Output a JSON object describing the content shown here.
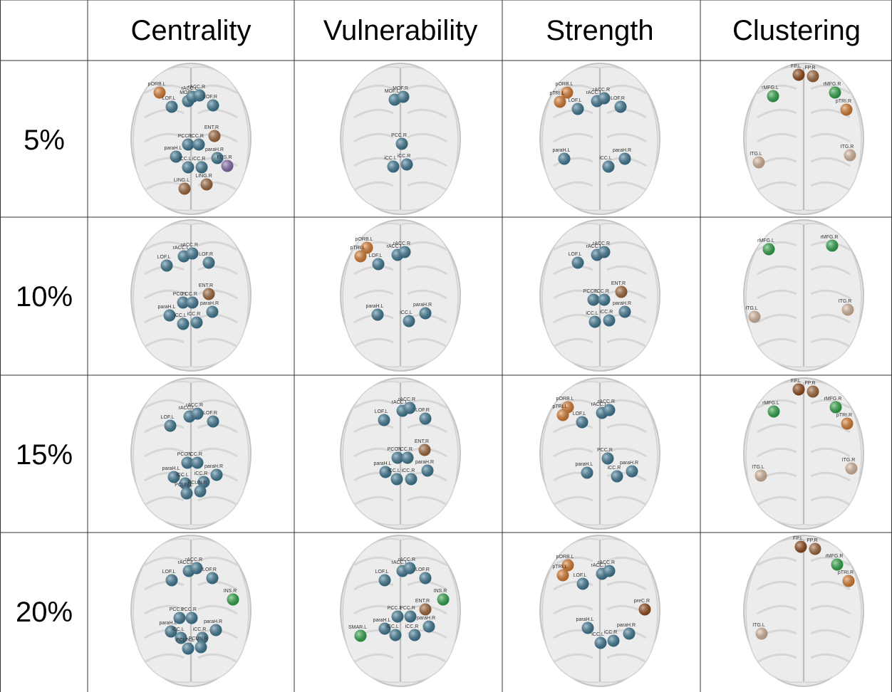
{
  "table": {
    "columns": [
      "Centrality",
      "Vulnerability",
      "Strength",
      "Clustering"
    ],
    "rows": [
      {
        "label": "5%",
        "cells": [
          [
            {
              "label": "pORB.L",
              "color": "#e8822e"
            },
            {
              "label": "LOF.L",
              "color": "#3f7f9c"
            },
            {
              "label": "MOF",
              "color": "#3f7f9c"
            },
            {
              "label": "rACC.L",
              "color": "#3f7f9c"
            },
            {
              "label": "rACC.R",
              "color": "#3f7f9c"
            },
            {
              "label": "LOF.R",
              "color": "#3f7f9c"
            },
            {
              "label": "PCC.L",
              "color": "#3f7f9c"
            },
            {
              "label": "PCC.R",
              "color": "#3f7f9c"
            },
            {
              "label": "ENT.R",
              "color": "#a86a3a"
            },
            {
              "label": "paraH.L",
              "color": "#3f7f9c"
            },
            {
              "label": "iCC.L",
              "color": "#3f7f9c"
            },
            {
              "label": "iCC.R",
              "color": "#3f7f9c"
            },
            {
              "label": "paraH.R",
              "color": "#3f7f9c"
            },
            {
              "label": "FUS.R",
              "color": "#8e6fb5"
            },
            {
              "label": "LING.L",
              "color": "#a86a3a"
            },
            {
              "label": "LING.R",
              "color": "#a86a3a"
            }
          ],
          [
            {
              "label": "MOF.L",
              "color": "#3f7f9c"
            },
            {
              "label": "MOF.R",
              "color": "#3f7f9c"
            },
            {
              "label": "PCC.R",
              "color": "#3f7f9c"
            },
            {
              "label": "iCC.L",
              "color": "#3f7f9c"
            },
            {
              "label": "iCC.R",
              "color": "#3f7f9c"
            }
          ],
          [
            {
              "label": "pORB.L",
              "color": "#e8822e"
            },
            {
              "label": "pTRI.L",
              "color": "#e8822e"
            },
            {
              "label": "LOF.L",
              "color": "#3f7f9c"
            },
            {
              "label": "rACC.L",
              "color": "#3f7f9c"
            },
            {
              "label": "rACC.R",
              "color": "#3f7f9c"
            },
            {
              "label": "LOF.R",
              "color": "#3f7f9c"
            },
            {
              "label": "paraH.L",
              "color": "#3f7f9c"
            },
            {
              "label": "iCC.L",
              "color": "#3f7f9c"
            },
            {
              "label": "paraH.R",
              "color": "#3f7f9c"
            }
          ],
          [
            {
              "label": "FP.L",
              "color": "#9a4a14"
            },
            {
              "label": "FP.R",
              "color": "#a86a3a"
            },
            {
              "label": "rMFG.L",
              "color": "#2eb04a"
            },
            {
              "label": "rMFG.R",
              "color": "#2eb04a"
            },
            {
              "label": "pTRI.R",
              "color": "#e8822e"
            },
            {
              "label": "ITG.L",
              "color": "#e6b894"
            },
            {
              "label": "ITG.R",
              "color": "#e6b894"
            }
          ]
        ]
      },
      {
        "label": "10%",
        "cells": [
          [
            {
              "label": "LOF.L",
              "color": "#3f7f9c"
            },
            {
              "label": "rACC.L",
              "color": "#3f7f9c"
            },
            {
              "label": "rACC.R",
              "color": "#3f7f9c"
            },
            {
              "label": "LOF.R",
              "color": "#3f7f9c"
            },
            {
              "label": "PCC.L",
              "color": "#3f7f9c"
            },
            {
              "label": "PCC.R",
              "color": "#3f7f9c"
            },
            {
              "label": "ENT.R",
              "color": "#a86a3a"
            },
            {
              "label": "paraH.L",
              "color": "#3f7f9c"
            },
            {
              "label": "iCC.L",
              "color": "#3f7f9c"
            },
            {
              "label": "iCC.R",
              "color": "#3f7f9c"
            },
            {
              "label": "paraH.R",
              "color": "#3f7f9c"
            }
          ],
          [
            {
              "label": "pORB.L",
              "color": "#e8822e"
            },
            {
              "label": "pTRI.L",
              "color": "#e8822e"
            },
            {
              "label": "LOF.L",
              "color": "#3f7f9c"
            },
            {
              "label": "rACC.L",
              "color": "#3f7f9c"
            },
            {
              "label": "rACC.R",
              "color": "#3f7f9c"
            },
            {
              "label": "paraH.L",
              "color": "#3f7f9c"
            },
            {
              "label": "iCC.L",
              "color": "#3f7f9c"
            },
            {
              "label": "paraH.R",
              "color": "#3f7f9c"
            }
          ],
          [
            {
              "label": "LOF.L",
              "color": "#3f7f9c"
            },
            {
              "label": "rACC.L",
              "color": "#3f7f9c"
            },
            {
              "label": "rACC.R",
              "color": "#3f7f9c"
            },
            {
              "label": "PCC.L",
              "color": "#3f7f9c"
            },
            {
              "label": "PCC.R",
              "color": "#3f7f9c"
            },
            {
              "label": "ENT.R",
              "color": "#a86a3a"
            },
            {
              "label": "iCC.L",
              "color": "#3f7f9c"
            },
            {
              "label": "iCC.R",
              "color": "#3f7f9c"
            },
            {
              "label": "paraH.R",
              "color": "#3f7f9c"
            }
          ],
          [
            {
              "label": "rMFG.L",
              "color": "#2eb04a"
            },
            {
              "label": "rMFG.R",
              "color": "#2eb04a"
            },
            {
              "label": "ITG.L",
              "color": "#e6b894"
            },
            {
              "label": "ITG.R",
              "color": "#e6b894"
            }
          ]
        ]
      },
      {
        "label": "15%",
        "cells": [
          [
            {
              "label": "LOF.L",
              "color": "#3f7f9c"
            },
            {
              "label": "rACC.L",
              "color": "#3f7f9c"
            },
            {
              "label": "rACC.R",
              "color": "#3f7f9c"
            },
            {
              "label": "LOF.R",
              "color": "#3f7f9c"
            },
            {
              "label": "PCC.L",
              "color": "#3f7f9c"
            },
            {
              "label": "PCC.R",
              "color": "#3f7f9c"
            },
            {
              "label": "paraH.L",
              "color": "#3f7f9c"
            },
            {
              "label": "iCC.L",
              "color": "#3f7f9c"
            },
            {
              "label": "iCC.R",
              "color": "#3f7f9c"
            },
            {
              "label": "paraH.R",
              "color": "#3f7f9c"
            },
            {
              "label": "PCUN.L",
              "color": "#3f7f9c"
            },
            {
              "label": "PCUN.R",
              "color": "#3f7f9c"
            }
          ],
          [
            {
              "label": "LOF.L",
              "color": "#3f7f9c"
            },
            {
              "label": "rACC.L",
              "color": "#3f7f9c"
            },
            {
              "label": "rACC.R",
              "color": "#3f7f9c"
            },
            {
              "label": "LOF.R",
              "color": "#3f7f9c"
            },
            {
              "label": "PCC.L",
              "color": "#3f7f9c"
            },
            {
              "label": "PCC.R",
              "color": "#3f7f9c"
            },
            {
              "label": "ENT.R",
              "color": "#a86a3a"
            },
            {
              "label": "paraH.L",
              "color": "#3f7f9c"
            },
            {
              "label": "iCC.L",
              "color": "#3f7f9c"
            },
            {
              "label": "iCC.R",
              "color": "#3f7f9c"
            },
            {
              "label": "paraH.R",
              "color": "#3f7f9c"
            }
          ],
          [
            {
              "label": "pORB.L",
              "color": "#e8822e"
            },
            {
              "label": "pTRI.L",
              "color": "#e8822e"
            },
            {
              "label": "LOF.L",
              "color": "#3f7f9c"
            },
            {
              "label": "rACC.L",
              "color": "#3f7f9c"
            },
            {
              "label": "rACC.R",
              "color": "#3f7f9c"
            },
            {
              "label": "PCC.R",
              "color": "#3f7f9c"
            },
            {
              "label": "paraH.L",
              "color": "#3f7f9c"
            },
            {
              "label": "iCC.R",
              "color": "#3f7f9c"
            },
            {
              "label": "paraH.R",
              "color": "#3f7f9c"
            }
          ],
          [
            {
              "label": "FP.L",
              "color": "#9a4a14"
            },
            {
              "label": "FP.R",
              "color": "#a86a3a"
            },
            {
              "label": "rMFG.L",
              "color": "#2eb04a"
            },
            {
              "label": "rMFG.R",
              "color": "#2eb04a"
            },
            {
              "label": "pTRI.R",
              "color": "#e8822e"
            },
            {
              "label": "ITG.L",
              "color": "#e6b894"
            },
            {
              "label": "ITG.R",
              "color": "#e6b894"
            }
          ]
        ]
      },
      {
        "label": "20%",
        "cells": [
          [
            {
              "label": "LOF.L",
              "color": "#3f7f9c"
            },
            {
              "label": "rACC.L",
              "color": "#3f7f9c"
            },
            {
              "label": "rACC.R",
              "color": "#3f7f9c"
            },
            {
              "label": "LOF.R",
              "color": "#3f7f9c"
            },
            {
              "label": "INS.R",
              "color": "#2eb04a"
            },
            {
              "label": "PCC.L",
              "color": "#3f7f9c"
            },
            {
              "label": "PCC.R",
              "color": "#3f7f9c"
            },
            {
              "label": "paraH.L",
              "color": "#3f7f9c"
            },
            {
              "label": "iCC.L",
              "color": "#3f7f9c"
            },
            {
              "label": "iCC.R",
              "color": "#3f7f9c"
            },
            {
              "label": "paraH.R",
              "color": "#3f7f9c"
            },
            {
              "label": "PCUN.L",
              "color": "#3f7f9c"
            },
            {
              "label": "PCUN.R",
              "color": "#3f7f9c"
            }
          ],
          [
            {
              "label": "LOF.L",
              "color": "#3f7f9c"
            },
            {
              "label": "rACC.L",
              "color": "#3f7f9c"
            },
            {
              "label": "rACC.R",
              "color": "#3f7f9c"
            },
            {
              "label": "LOF.R",
              "color": "#3f7f9c"
            },
            {
              "label": "INS.R",
              "color": "#2eb04a"
            },
            {
              "label": "ENT.R",
              "color": "#a86a3a"
            },
            {
              "label": "PCC.L",
              "color": "#3f7f9c"
            },
            {
              "label": "PCC.R",
              "color": "#3f7f9c"
            },
            {
              "label": "SMAR.L",
              "color": "#2eb04a"
            },
            {
              "label": "paraH.L",
              "color": "#3f7f9c"
            },
            {
              "label": "iCC.L",
              "color": "#3f7f9c"
            },
            {
              "label": "iCC.R",
              "color": "#3f7f9c"
            },
            {
              "label": "paraH.R",
              "color": "#3f7f9c"
            }
          ],
          [
            {
              "label": "pORB.L",
              "color": "#e8822e"
            },
            {
              "label": "pTRI.L",
              "color": "#e8822e"
            },
            {
              "label": "LOF.L",
              "color": "#3f7f9c"
            },
            {
              "label": "rACC.L",
              "color": "#3f7f9c"
            },
            {
              "label": "rACC.R",
              "color": "#3f7f9c"
            },
            {
              "label": "preC.R",
              "color": "#9a4a14"
            },
            {
              "label": "paraH.L",
              "color": "#3f7f9c"
            },
            {
              "label": "iCC.L",
              "color": "#3f7f9c"
            },
            {
              "label": "iCC.R",
              "color": "#3f7f9c"
            },
            {
              "label": "paraH.R",
              "color": "#3f7f9c"
            }
          ],
          [
            {
              "label": "FP.L",
              "color": "#9a4a14"
            },
            {
              "label": "FP.R",
              "color": "#a86a3a"
            },
            {
              "label": "rMFG.R",
              "color": "#2eb04a"
            },
            {
              "label": "pTRI.R",
              "color": "#e8822e"
            },
            {
              "label": "ITG.L",
              "color": "#e6b894"
            }
          ]
        ]
      }
    ]
  }
}
